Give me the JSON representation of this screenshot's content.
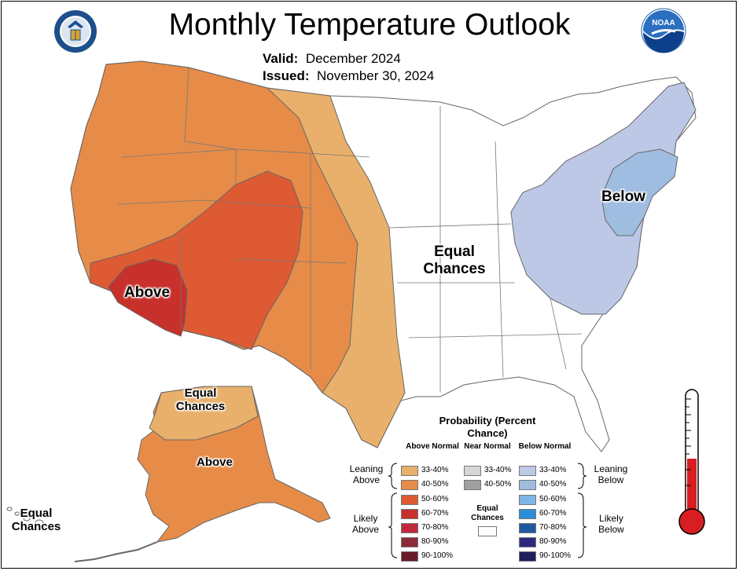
{
  "title": "Monthly Temperature Outlook",
  "valid": {
    "label": "Valid:",
    "value": "December 2024"
  },
  "issued": {
    "label": "Issued:",
    "value": "November 30, 2024"
  },
  "map_labels": {
    "above_main": "Above",
    "below_main": "Below",
    "equal_main": "Equal Chances",
    "alaska_equal": "Equal Chances",
    "alaska_above": "Above",
    "hawaii_equal": "Equal Chances"
  },
  "legend": {
    "title": "Probability (Percent Chance)",
    "col_above": "Above Normal",
    "col_near": "Near Normal",
    "col_below": "Below Normal",
    "leaning_above": "Leaning Above",
    "likely_above": "Likely Above",
    "leaning_below": "Leaning Below",
    "likely_below": "Likely Below",
    "equal_chances": "Equal Chances",
    "above_bins": [
      {
        "label": "33-40%",
        "color": "#e8b06a"
      },
      {
        "label": "40-50%",
        "color": "#e68c48"
      },
      {
        "label": "50-60%",
        "color": "#de5a32"
      },
      {
        "label": "60-70%",
        "color": "#c8302c"
      },
      {
        "label": "70-80%",
        "color": "#c2273d"
      },
      {
        "label": "80-90%",
        "color": "#8c2c3a"
      },
      {
        "label": "90-100%",
        "color": "#6b1a28"
      }
    ],
    "near_bins": [
      {
        "label": "33-40%",
        "color": "#d6d6d6"
      },
      {
        "label": "40-50%",
        "color": "#a0a0a0"
      }
    ],
    "below_bins": [
      {
        "label": "33-40%",
        "color": "#bcc8e6"
      },
      {
        "label": "40-50%",
        "color": "#9fbde0"
      },
      {
        "label": "50-60%",
        "color": "#7fb6e6"
      },
      {
        "label": "60-70%",
        "color": "#2a8fd8"
      },
      {
        "label": "70-80%",
        "color": "#1f5aa0"
      },
      {
        "label": "80-90%",
        "color": "#2b2a7e"
      },
      {
        "label": "90-100%",
        "color": "#1e1f5a"
      }
    ]
  },
  "logos": {
    "left": "doc-seal-icon",
    "right": "noaa-logo-icon",
    "thermometer": "thermometer-icon"
  }
}
